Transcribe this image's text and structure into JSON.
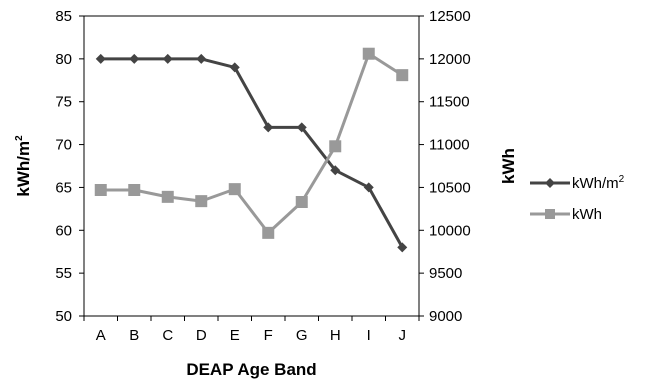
{
  "chart_data": {
    "type": "line",
    "categories": [
      "A",
      "B",
      "C",
      "D",
      "E",
      "F",
      "G",
      "H",
      "I",
      "J"
    ],
    "xlabel": "DEAP Age Band",
    "ylabel_left": "kWh/m",
    "ylabel_left_sup": "2",
    "ylabel_right": "kWh",
    "left_axis": {
      "range": [
        50,
        85
      ],
      "ticks": [
        "50",
        "55",
        "60",
        "65",
        "70",
        "75",
        "80",
        "85"
      ]
    },
    "right_axis": {
      "range": [
        9000,
        12500
      ],
      "ticks": [
        "9000",
        "9500",
        "10000",
        "10500",
        "11000",
        "11500",
        "12000",
        "12500"
      ]
    },
    "grid": false,
    "legend_position": "right",
    "series": [
      {
        "name": "kWh/m",
        "name_sup": "2",
        "axis": "left",
        "marker": "diamond",
        "color": "#444444",
        "values": [
          80,
          80,
          80,
          80,
          79,
          72,
          72,
          67,
          65,
          58
        ]
      },
      {
        "name": "kWh",
        "axis": "right",
        "marker": "square",
        "color": "#999999",
        "values": [
          10470,
          10470,
          10390,
          10340,
          10480,
          9970,
          10330,
          10980,
          12060,
          11810
        ]
      }
    ]
  }
}
